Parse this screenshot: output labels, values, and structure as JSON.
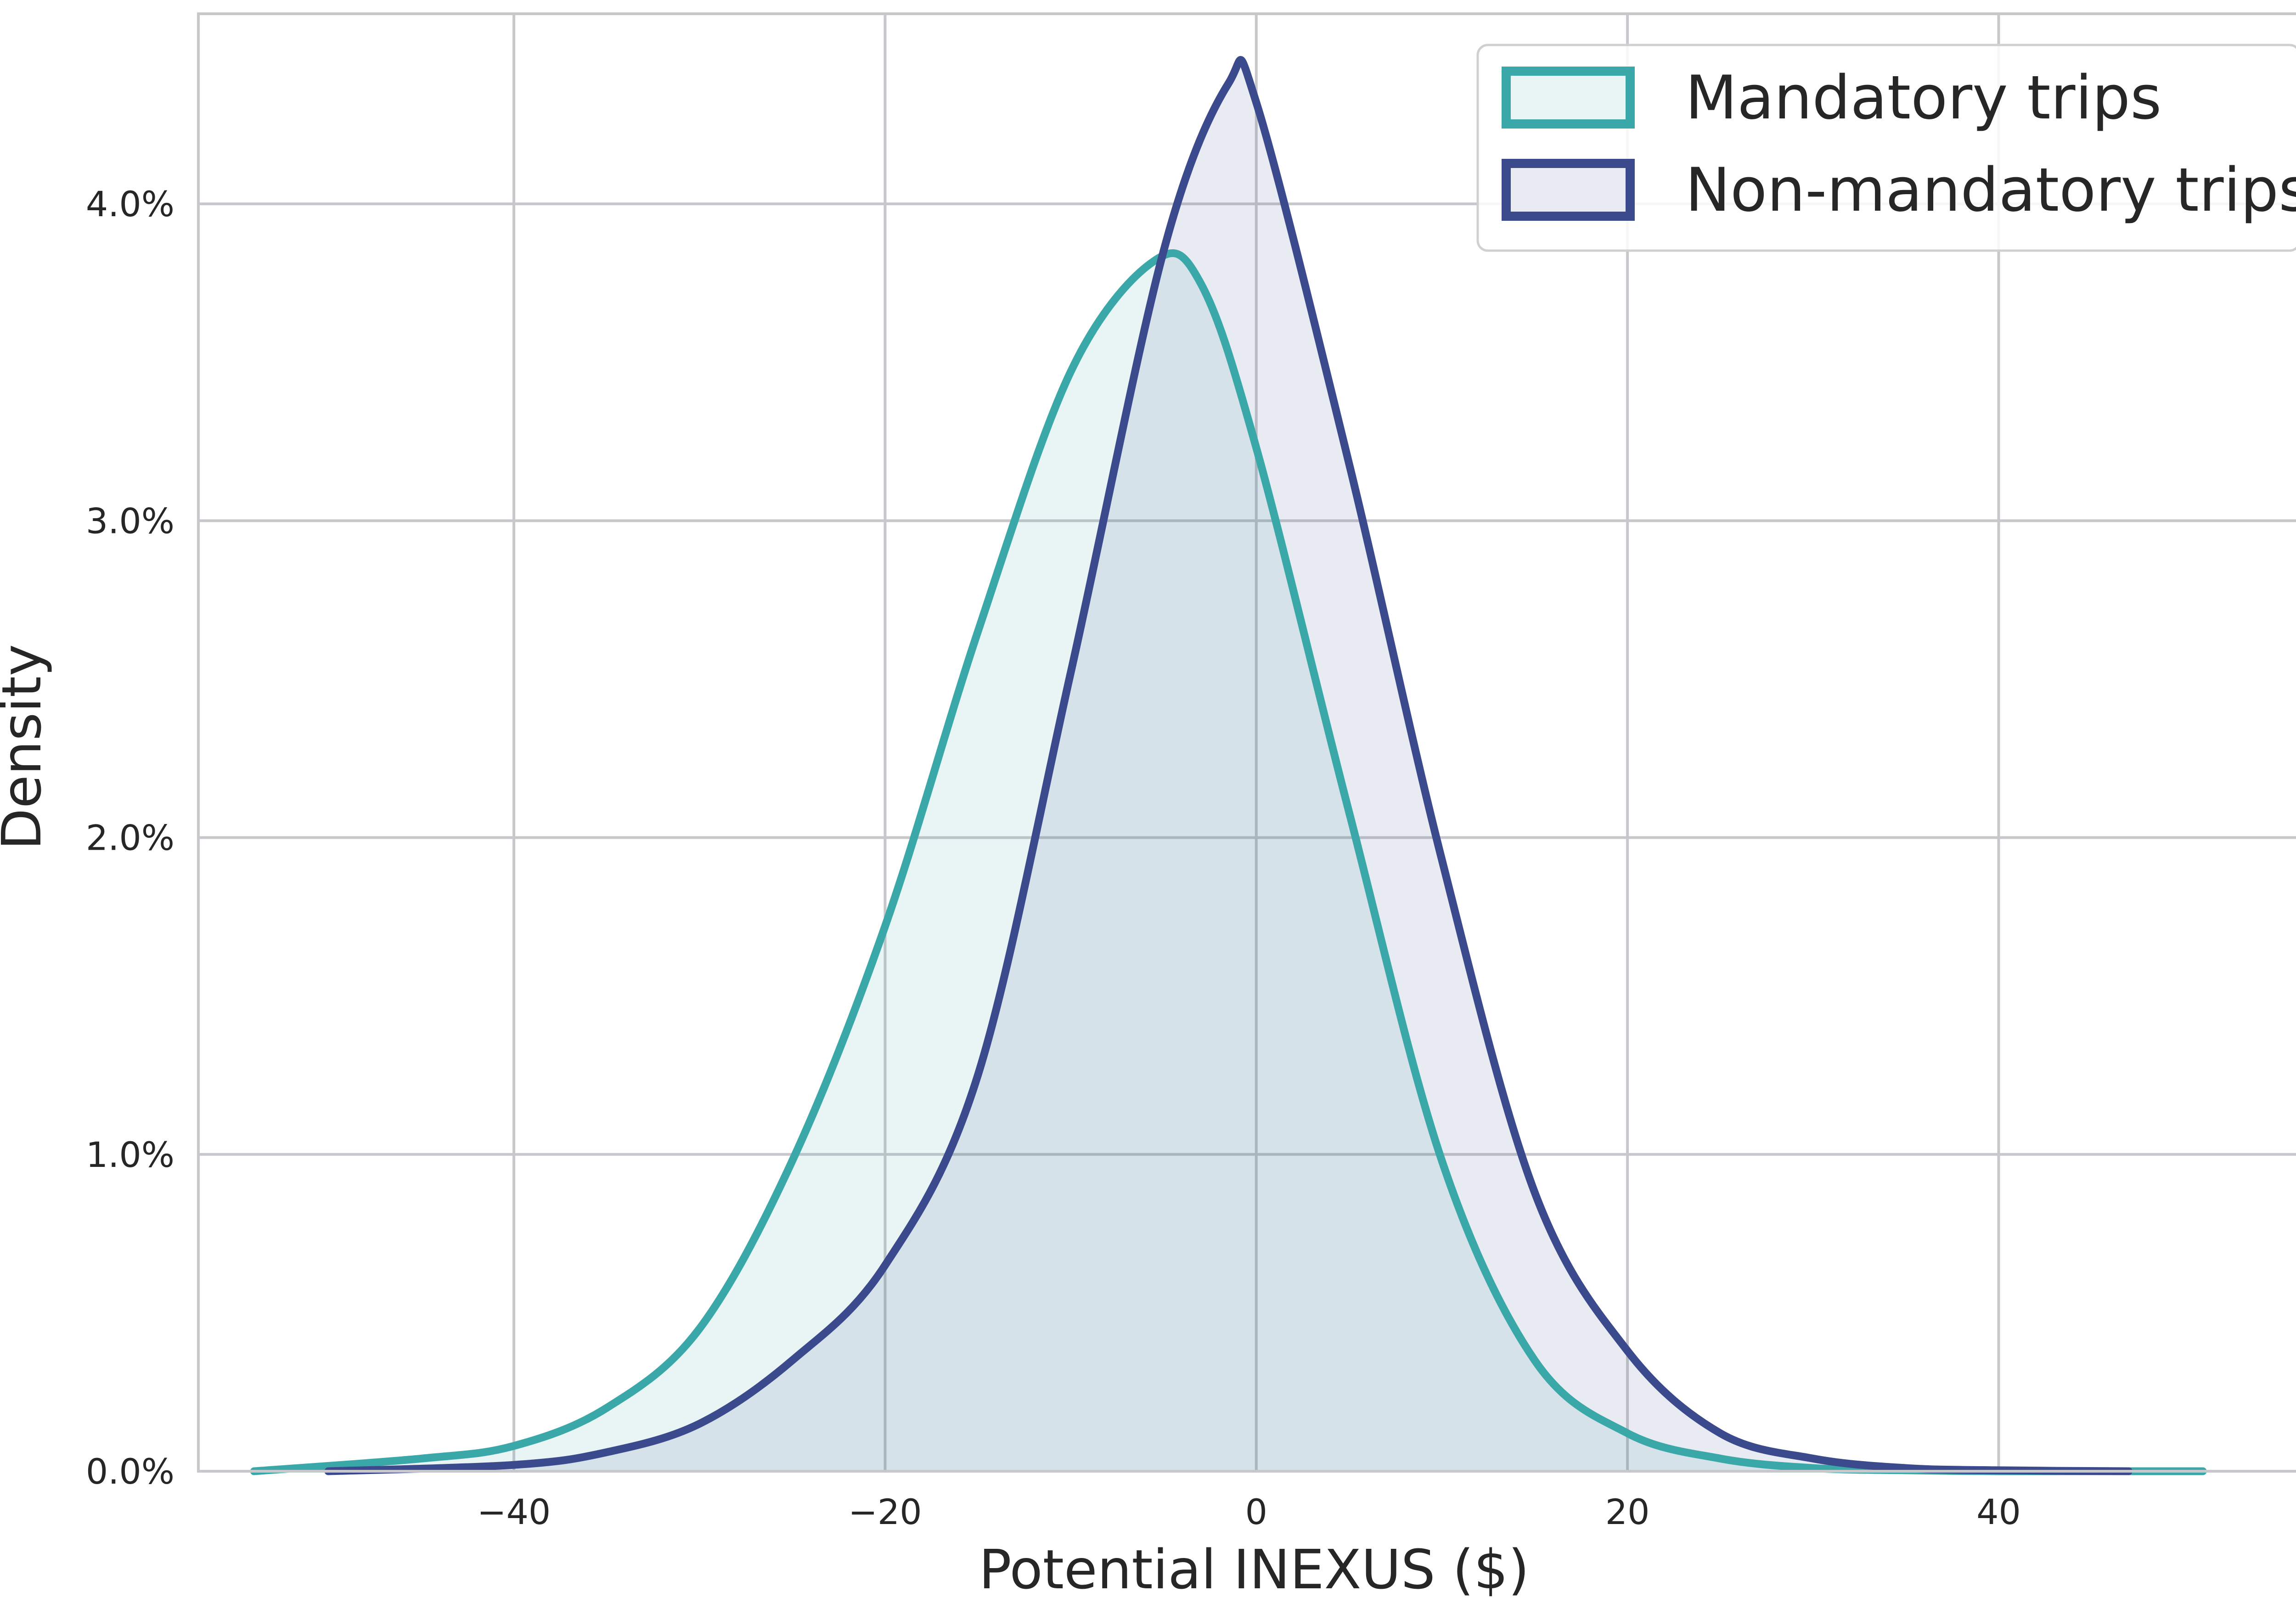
{
  "chart_data": {
    "type": "area",
    "title": "",
    "xlabel": "Potential INEXUS ($)",
    "ylabel": "Density",
    "xlim": [
      -57,
      58
    ],
    "ylim": [
      0,
      0.046
    ],
    "x_ticks": [
      -40,
      -20,
      0,
      20,
      40
    ],
    "x_tick_labels": [
      "−40",
      "−20",
      "0",
      "20",
      "40"
    ],
    "y_ticks": [
      0,
      0.01,
      0.02,
      0.03,
      0.04
    ],
    "y_tick_labels": [
      "0.0%",
      "1.0%",
      "2.0%",
      "3.0%",
      "4.0%"
    ],
    "grid": true,
    "legend": {
      "position": "top-right",
      "entries": [
        "Mandatory trips",
        "Non-mandatory trips"
      ]
    },
    "series": [
      {
        "name": "Mandatory trips",
        "color": "#3aa8a8",
        "fill": "#e8f5f4",
        "x": [
          -54,
          -45,
          -40,
          -35,
          -30,
          -25,
          -20,
          -15,
          -10,
          -5.5,
          -3,
          0,
          5,
          10,
          15,
          20,
          25,
          30,
          35,
          40,
          45,
          51
        ],
        "y": [
          0,
          0.0004,
          0.0008,
          0.002,
          0.0045,
          0.0098,
          0.0172,
          0.0265,
          0.0347,
          0.0382,
          0.0375,
          0.0323,
          0.0208,
          0.0098,
          0.0035,
          0.0012,
          0.0004,
          0.0001,
          3e-05,
          0,
          0,
          0
        ]
      },
      {
        "name": "Non-mandatory trips",
        "color": "#3b4a8c",
        "fill": "#eaeaf4",
        "x": [
          -50,
          -40,
          -35,
          -30,
          -25,
          -20,
          -15,
          -10,
          -5,
          -1.5,
          0,
          5,
          10,
          15,
          20,
          25,
          30,
          35,
          40,
          47
        ],
        "y": [
          0,
          0.0002,
          0.0006,
          0.0015,
          0.0035,
          0.0065,
          0.0125,
          0.0252,
          0.0385,
          0.0438,
          0.0432,
          0.0318,
          0.0193,
          0.0088,
          0.0038,
          0.0012,
          0.0004,
          0.0001,
          3e-05,
          0
        ]
      }
    ]
  }
}
